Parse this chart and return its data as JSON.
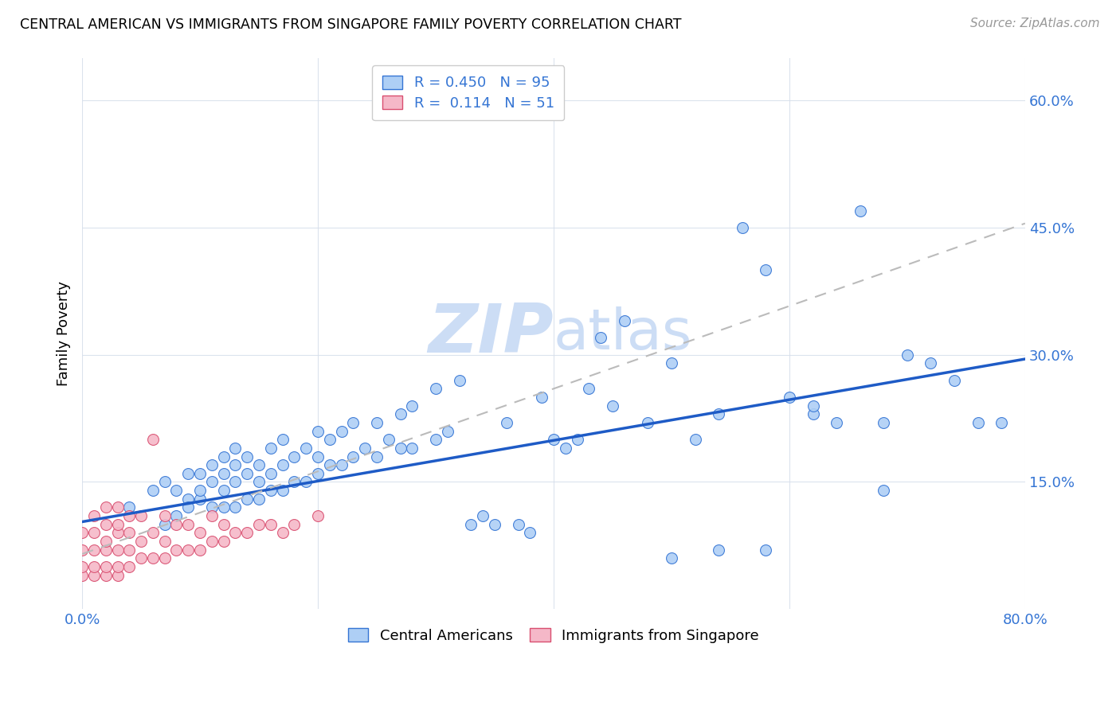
{
  "title": "CENTRAL AMERICAN VS IMMIGRANTS FROM SINGAPORE FAMILY POVERTY CORRELATION CHART",
  "source": "Source: ZipAtlas.com",
  "ylabel": "Family Poverty",
  "xlim": [
    0.0,
    0.8
  ],
  "ylim": [
    0.0,
    0.65
  ],
  "xtick_positions": [
    0.0,
    0.2,
    0.4,
    0.6,
    0.8
  ],
  "xticklabels": [
    "0.0%",
    "",
    "",
    "",
    "80.0%"
  ],
  "ytick_positions": [
    0.15,
    0.3,
    0.45,
    0.6
  ],
  "ytick_labels": [
    "15.0%",
    "30.0%",
    "45.0%",
    "60.0%"
  ],
  "blue_face_color": "#aecff5",
  "blue_edge_color": "#3575d4",
  "blue_line_color": "#1e5bc6",
  "pink_face_color": "#f5b8c8",
  "pink_edge_color": "#d94f70",
  "pink_line_color": "#cc4466",
  "watermark_color": "#ccddf5",
  "grid_color": "#d8e0ec",
  "tick_label_color": "#3575d4",
  "blue_scatter_x": [
    0.04,
    0.06,
    0.07,
    0.07,
    0.08,
    0.08,
    0.09,
    0.09,
    0.09,
    0.1,
    0.1,
    0.1,
    0.11,
    0.11,
    0.11,
    0.12,
    0.12,
    0.12,
    0.12,
    0.13,
    0.13,
    0.13,
    0.13,
    0.14,
    0.14,
    0.14,
    0.15,
    0.15,
    0.15,
    0.16,
    0.16,
    0.16,
    0.17,
    0.17,
    0.17,
    0.18,
    0.18,
    0.19,
    0.19,
    0.2,
    0.2,
    0.2,
    0.21,
    0.21,
    0.22,
    0.22,
    0.23,
    0.23,
    0.24,
    0.25,
    0.25,
    0.26,
    0.27,
    0.27,
    0.28,
    0.28,
    0.3,
    0.3,
    0.31,
    0.32,
    0.33,
    0.34,
    0.35,
    0.36,
    0.37,
    0.38,
    0.39,
    0.4,
    0.41,
    0.42,
    0.43,
    0.44,
    0.45,
    0.46,
    0.48,
    0.5,
    0.52,
    0.54,
    0.56,
    0.58,
    0.6,
    0.62,
    0.64,
    0.66,
    0.68,
    0.7,
    0.72,
    0.74,
    0.76,
    0.78,
    0.5,
    0.54,
    0.58,
    0.62,
    0.68
  ],
  "blue_scatter_y": [
    0.12,
    0.14,
    0.1,
    0.15,
    0.11,
    0.14,
    0.13,
    0.16,
    0.12,
    0.13,
    0.16,
    0.14,
    0.12,
    0.15,
    0.17,
    0.12,
    0.14,
    0.16,
    0.18,
    0.12,
    0.15,
    0.17,
    0.19,
    0.13,
    0.16,
    0.18,
    0.13,
    0.15,
    0.17,
    0.14,
    0.16,
    0.19,
    0.14,
    0.17,
    0.2,
    0.15,
    0.18,
    0.15,
    0.19,
    0.16,
    0.18,
    0.21,
    0.17,
    0.2,
    0.17,
    0.21,
    0.18,
    0.22,
    0.19,
    0.18,
    0.22,
    0.2,
    0.19,
    0.23,
    0.19,
    0.24,
    0.2,
    0.26,
    0.21,
    0.27,
    0.1,
    0.11,
    0.1,
    0.22,
    0.1,
    0.09,
    0.25,
    0.2,
    0.19,
    0.2,
    0.26,
    0.32,
    0.24,
    0.34,
    0.22,
    0.29,
    0.2,
    0.23,
    0.45,
    0.4,
    0.25,
    0.23,
    0.22,
    0.47,
    0.22,
    0.3,
    0.29,
    0.27,
    0.22,
    0.22,
    0.06,
    0.07,
    0.07,
    0.24,
    0.14
  ],
  "pink_scatter_x": [
    0.0,
    0.0,
    0.0,
    0.0,
    0.01,
    0.01,
    0.01,
    0.01,
    0.01,
    0.02,
    0.02,
    0.02,
    0.02,
    0.02,
    0.02,
    0.03,
    0.03,
    0.03,
    0.03,
    0.03,
    0.03,
    0.04,
    0.04,
    0.04,
    0.04,
    0.05,
    0.05,
    0.05,
    0.06,
    0.06,
    0.07,
    0.07,
    0.07,
    0.08,
    0.08,
    0.09,
    0.09,
    0.1,
    0.1,
    0.11,
    0.11,
    0.12,
    0.12,
    0.13,
    0.14,
    0.15,
    0.16,
    0.17,
    0.18,
    0.2,
    0.06
  ],
  "pink_scatter_y": [
    0.04,
    0.05,
    0.07,
    0.09,
    0.04,
    0.05,
    0.07,
    0.09,
    0.11,
    0.04,
    0.05,
    0.07,
    0.08,
    0.1,
    0.12,
    0.04,
    0.05,
    0.07,
    0.09,
    0.1,
    0.12,
    0.05,
    0.07,
    0.09,
    0.11,
    0.06,
    0.08,
    0.11,
    0.06,
    0.09,
    0.06,
    0.08,
    0.11,
    0.07,
    0.1,
    0.07,
    0.1,
    0.07,
    0.09,
    0.08,
    0.11,
    0.08,
    0.1,
    0.09,
    0.09,
    0.1,
    0.1,
    0.09,
    0.1,
    0.11,
    0.2
  ],
  "blue_line_x0": 0.0,
  "blue_line_y0": 0.103,
  "blue_line_x1": 0.8,
  "blue_line_y1": 0.295,
  "pink_line_x0": 0.0,
  "pink_line_y0": 0.065,
  "pink_line_x1": 0.8,
  "pink_line_y1": 0.455
}
